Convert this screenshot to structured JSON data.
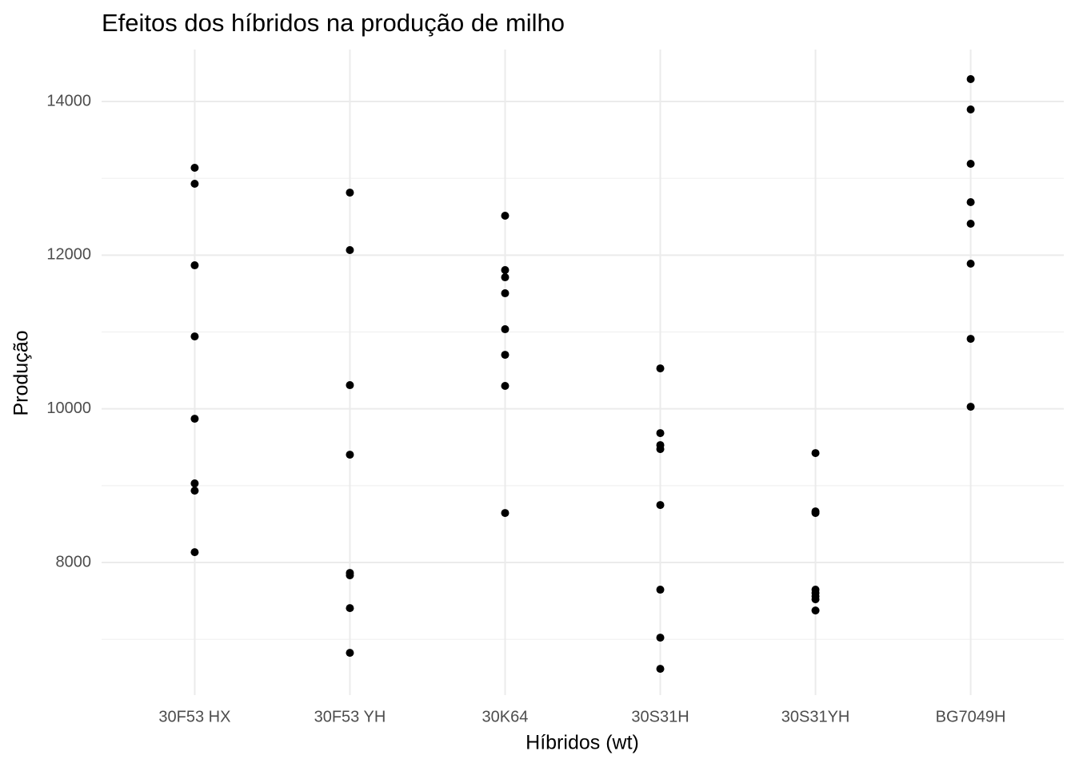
{
  "chart_data": {
    "type": "scatter",
    "title": "Efeitos dos híbridos na produção de milho",
    "x_label": "Híbridos (wt)",
    "y_label": "Produção",
    "categories": [
      "30F53 HX",
      "30F53 YH",
      "30K64",
      "30S31H",
      "30S31YH",
      "BG7049H"
    ],
    "values": [
      [
        13137,
        12929,
        11868,
        10942,
        9871,
        9029,
        8935,
        8134
      ],
      [
        12814,
        12066,
        10308,
        9403,
        7864,
        7833,
        7406,
        6824
      ],
      [
        12513,
        11806,
        11712,
        11504,
        11036,
        10703,
        10298,
        8644
      ],
      [
        10526,
        9684,
        9528,
        9476,
        8748,
        7646,
        7022,
        6616
      ],
      [
        9424,
        8665,
        8644,
        7646,
        7604,
        7562,
        7521,
        7375
      ],
      [
        14291,
        13896,
        13189,
        12690,
        12409,
        11889,
        10911,
        10027
      ]
    ],
    "color": "#000000",
    "ylim": [
      6274,
      14676
    ],
    "yticks": [
      8000,
      10000,
      12000,
      14000
    ],
    "minor_yticks": [
      7000,
      9000,
      11000,
      13000
    ],
    "grid": true
  }
}
